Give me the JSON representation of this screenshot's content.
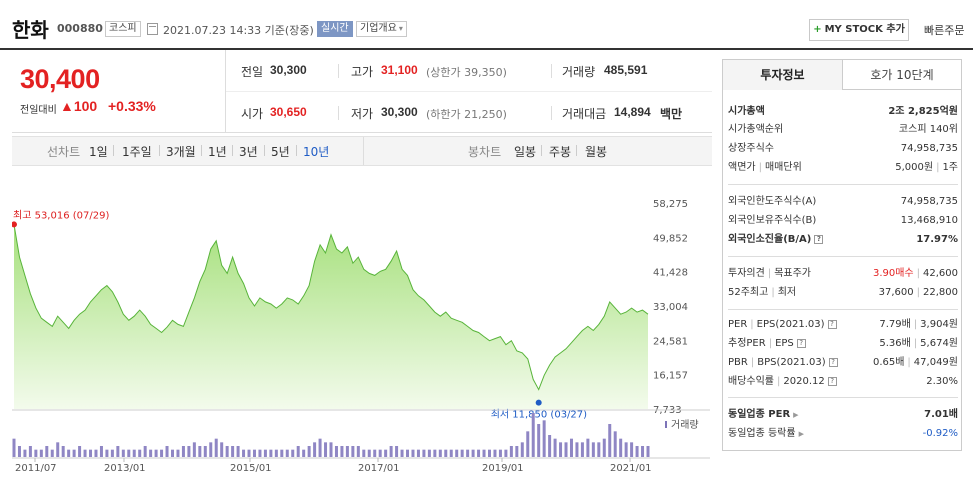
{
  "header": {
    "name": "한화",
    "code": "000880",
    "market": "코스피",
    "timestamp": "2021.07.23 14:33 기준(장중)",
    "realtime_badge": "실시간",
    "overview_label": "기업개요",
    "mystock_label": "MY STOCK 추가",
    "quick_order_label": "빠른주문"
  },
  "price": {
    "current": "30,400",
    "change_label": "전일대비",
    "change_arrow": "▲",
    "change_value": "100",
    "change_pct": "+0.33%"
  },
  "quotes": {
    "prev_label": "전일",
    "prev_value": "30,300",
    "high_label": "고가",
    "high_value": "31,100",
    "upper_limit": "(상한가 39,350)",
    "volume_label": "거래량",
    "volume_value": "485,591",
    "open_label": "시가",
    "open_value": "30,650",
    "low_label": "저가",
    "low_value": "30,300",
    "lower_limit": "(하한가 21,250)",
    "amount_label": "거래대금",
    "amount_value": "14,894",
    "amount_unit": "백만"
  },
  "period_bar": {
    "line_label": "선차트",
    "line_periods": [
      "1일",
      "1주일",
      "3개월",
      "1년",
      "3년",
      "5년",
      "10년"
    ],
    "selected": "10년",
    "candle_label": "봉차트",
    "candle_periods": [
      "일봉",
      "주봉",
      "월봉"
    ]
  },
  "chart_data": {
    "type": "area",
    "x_ticks": [
      "2011/07",
      "2013/01",
      "2015/01",
      "2017/01",
      "2019/01",
      "2021/01"
    ],
    "y_ticks": [
      58275,
      49852,
      41428,
      33004,
      24581,
      16157,
      7733
    ],
    "ylim": [
      7733,
      58275
    ],
    "high_annotation": "최고 53,016 (07/29)",
    "low_annotation": "최저 11,850 (03/27)",
    "volume_label": "거래량",
    "prices": [
      53016,
      45000,
      40500,
      36000,
      32500,
      30000,
      29000,
      28000,
      30500,
      29000,
      27500,
      29500,
      31000,
      32000,
      34000,
      35500,
      37000,
      38000,
      36500,
      34000,
      31000,
      29500,
      30500,
      32000,
      30500,
      28500,
      27500,
      26500,
      27800,
      29500,
      28500,
      28000,
      31500,
      35000,
      39000,
      42000,
      47000,
      49000,
      43000,
      41000,
      45000,
      41000,
      38500,
      35000,
      33000,
      35000,
      34000,
      33500,
      32500,
      33500,
      35000,
      34500,
      33500,
      35500,
      38000,
      44000,
      48000,
      46000,
      50500,
      47000,
      46000,
      47500,
      43500,
      45000,
      42000,
      41000,
      40500,
      41500,
      42000,
      44000,
      46500,
      42000,
      40500,
      37000,
      35500,
      34500,
      33000,
      31500,
      30500,
      31500,
      30000,
      29500,
      29000,
      28000,
      27000,
      26500,
      25500,
      24500,
      25000,
      25500,
      23500,
      24500,
      22000,
      21500,
      20000,
      15000,
      12500,
      16000,
      18500,
      20500,
      21500,
      22500,
      24000,
      25500,
      27000,
      28000,
      27000,
      28500,
      30500,
      34000,
      32500,
      31000,
      31500,
      32500,
      31500,
      32000,
      31000
    ],
    "volumes": [
      5,
      3,
      2,
      3,
      2,
      2,
      3,
      2,
      4,
      3,
      2,
      2,
      3,
      2,
      2,
      2,
      3,
      2,
      2,
      3,
      2,
      2,
      2,
      2,
      3,
      2,
      2,
      2,
      3,
      2,
      2,
      3,
      3,
      4,
      3,
      3,
      4,
      5,
      4,
      3,
      3,
      3,
      2,
      2,
      2,
      2,
      2,
      2,
      2,
      2,
      2,
      2,
      3,
      2,
      3,
      4,
      5,
      4,
      4,
      3,
      3,
      3,
      3,
      3,
      2,
      2,
      2,
      2,
      2,
      3,
      3,
      2,
      2,
      2,
      2,
      2,
      2,
      2,
      2,
      2,
      2,
      2,
      2,
      2,
      2,
      2,
      2,
      2,
      2,
      2,
      2,
      3,
      3,
      4,
      7,
      12,
      9,
      10,
      6,
      5,
      4,
      4,
      5,
      4,
      4,
      5,
      4,
      4,
      5,
      9,
      7,
      5,
      4,
      4,
      3,
      3,
      3
    ]
  },
  "right_panel": {
    "tabs": [
      "투자정보",
      "호가 10단계"
    ],
    "market_cap_label": "시가총액",
    "market_cap_value": "2조 2,825억원",
    "market_cap_rank_label": "시가총액순위",
    "market_cap_rank_value": "코스피 140위",
    "shares_label": "상장주식수",
    "shares_value": "74,958,735",
    "facevalue_label": "액면가",
    "trade_unit_label": "매매단위",
    "facevalue_value": "5,000원",
    "trade_unit_value": "1주",
    "foreign_limit_label": "외국인한도주식수(A)",
    "foreign_limit_value": "74,958,735",
    "foreign_hold_label": "외국인보유주식수(B)",
    "foreign_hold_value": "13,468,910",
    "foreign_ratio_label": "외국인소진율(B/A)",
    "foreign_ratio_value": "17.97%",
    "opinion_label": "투자의견",
    "target_label": "목표주가",
    "opinion_value": "3.90매수",
    "target_value": "42,600",
    "week52_label": "52주최고",
    "week52_low_label": "최저",
    "week52_high": "37,600",
    "week52_low": "22,800",
    "per_label": "PER",
    "eps_label": "EPS(2021.03)",
    "per_value": "7.79배",
    "eps_value": "3,904원",
    "est_per_label": "추정PER",
    "est_eps_label": "EPS",
    "est_per_value": "5.36배",
    "est_eps_value": "5,674원",
    "pbr_label": "PBR",
    "bps_label": "BPS(2021.03)",
    "pbr_value": "0.65배",
    "bps_value": "47,049원",
    "dividend_label": "배당수익률",
    "dividend_date": "2020.12",
    "dividend_value": "2.30%",
    "sector_per_label": "동일업종 PER",
    "sector_per_value": "7.01배",
    "sector_change_label": "동일업종 등락률",
    "sector_change_value": "-0.92%"
  }
}
